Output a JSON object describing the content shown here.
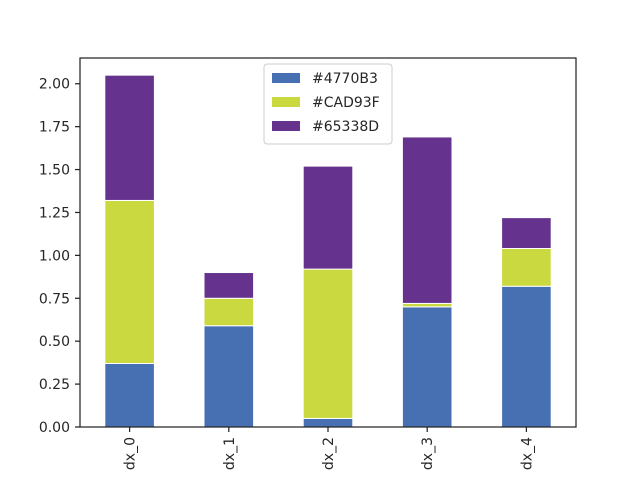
{
  "chart_data": {
    "type": "bar",
    "stacked": true,
    "categories": [
      "dx_0",
      "dx_1",
      "dx_2",
      "dx_3",
      "dx_4"
    ],
    "series": [
      {
        "name": "#4770B3",
        "color": "#4770B3",
        "values": [
          0.37,
          0.59,
          0.05,
          0.7,
          0.82
        ]
      },
      {
        "name": "#CAD93F",
        "color": "#CAD93F",
        "values": [
          0.95,
          0.16,
          0.87,
          0.02,
          0.22
        ]
      },
      {
        "name": "#65338D",
        "color": "#65338D",
        "values": [
          0.73,
          0.15,
          0.6,
          0.97,
          0.18
        ]
      }
    ],
    "ylim": [
      0,
      2.15
    ],
    "yticks": [
      "0.00",
      "0.25",
      "0.50",
      "0.75",
      "1.00",
      "1.25",
      "1.50",
      "1.75",
      "2.00"
    ],
    "title": "",
    "xlabel": "",
    "ylabel": "",
    "grid": false,
    "legend_position": "top-center"
  }
}
